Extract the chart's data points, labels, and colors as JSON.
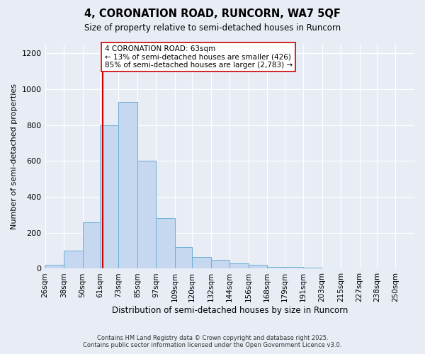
{
  "title1": "4, CORONATION ROAD, RUNCORN, WA7 5QF",
  "title2": "Size of property relative to semi-detached houses in Runcorn",
  "xlabel": "Distribution of semi-detached houses by size in Runcorn",
  "ylabel": "Number of semi-detached properties",
  "property_size": 63,
  "annotation_text": "4 CORONATION ROAD: 63sqm\n← 13% of semi-detached houses are smaller (426)\n85% of semi-detached houses are larger (2,783) →",
  "bins": [
    26,
    38,
    50,
    61,
    73,
    85,
    97,
    109,
    120,
    132,
    144,
    156,
    168,
    179,
    191,
    203,
    215,
    227,
    238,
    250,
    262
  ],
  "counts": [
    20,
    100,
    260,
    800,
    930,
    600,
    280,
    120,
    65,
    50,
    30,
    20,
    10,
    8,
    4,
    3,
    2,
    1,
    1,
    1
  ],
  "bar_color": "#c5d8f0",
  "bar_edge_color": "#6baed6",
  "line_color": "#cc0000",
  "background_color": "#e8edf5",
  "ylim_max": 1250,
  "yticks": [
    0,
    200,
    400,
    600,
    800,
    1000,
    1200
  ],
  "grid_color": "#ffffff",
  "footer1": "Contains HM Land Registry data © Crown copyright and database right 2025.",
  "footer2": "Contains public sector information licensed under the Open Government Licence v3.0."
}
